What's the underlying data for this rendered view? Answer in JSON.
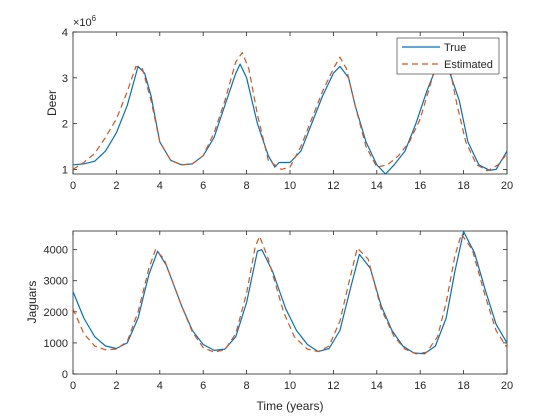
{
  "chart_data": [
    {
      "type": "line",
      "xlabel": "",
      "ylabel": "Deer",
      "xlim": [
        0,
        20
      ],
      "ylim": [
        0.9,
        4
      ],
      "y_exponent_label": "×10",
      "y_exponent_power": "6",
      "xticks": [
        "0",
        "2",
        "4",
        "6",
        "8",
        "10",
        "12",
        "14",
        "16",
        "18",
        "20"
      ],
      "yticks": [
        "1",
        "2",
        "3",
        "4"
      ],
      "legend": {
        "placement": "top-right",
        "entries": [
          "True",
          "Estimated"
        ]
      },
      "series": [
        {
          "name": "True",
          "color": "#0072BD",
          "style": "solid",
          "points": [
            [
              0,
              1.1
            ],
            [
              0.5,
              1.12
            ],
            [
              1,
              1.18
            ],
            [
              1.5,
              1.4
            ],
            [
              2,
              1.8
            ],
            [
              2.5,
              2.4
            ],
            [
              3,
              3.25
            ],
            [
              3.3,
              3.1
            ],
            [
              3.6,
              2.6
            ],
            [
              4,
              1.6
            ],
            [
              4.5,
              1.2
            ],
            [
              5,
              1.1
            ],
            [
              5.5,
              1.12
            ],
            [
              6,
              1.3
            ],
            [
              6.5,
              1.7
            ],
            [
              7,
              2.4
            ],
            [
              7.5,
              3.1
            ],
            [
              7.7,
              3.3
            ],
            [
              8,
              3.0
            ],
            [
              8.5,
              2.0
            ],
            [
              9,
              1.3
            ],
            [
              9.3,
              1.05
            ],
            [
              9.5,
              1.15
            ],
            [
              10,
              1.15
            ],
            [
              10.5,
              1.4
            ],
            [
              11,
              2.0
            ],
            [
              11.5,
              2.6
            ],
            [
              12,
              3.1
            ],
            [
              12.3,
              3.25
            ],
            [
              12.7,
              3.0
            ],
            [
              13,
              2.4
            ],
            [
              13.5,
              1.6
            ],
            [
              14,
              1.1
            ],
            [
              14.4,
              0.9
            ],
            [
              14.8,
              1.1
            ],
            [
              15.3,
              1.4
            ],
            [
              15.8,
              2.0
            ],
            [
              16.3,
              2.7
            ],
            [
              16.8,
              3.3
            ],
            [
              17.3,
              3.2
            ],
            [
              17.8,
              2.5
            ],
            [
              18.2,
              1.6
            ],
            [
              18.7,
              1.1
            ],
            [
              19.2,
              0.98
            ],
            [
              19.5,
              1.0
            ],
            [
              20,
              1.4
            ]
          ]
        },
        {
          "name": "Estimated",
          "color": "#D95319",
          "style": "dashed",
          "points": [
            [
              0,
              1.0
            ],
            [
              0.5,
              1.15
            ],
            [
              1,
              1.35
            ],
            [
              1.5,
              1.7
            ],
            [
              2,
              2.1
            ],
            [
              2.5,
              2.7
            ],
            [
              2.9,
              3.25
            ],
            [
              3.2,
              3.2
            ],
            [
              3.6,
              2.5
            ],
            [
              4,
              1.6
            ],
            [
              4.5,
              1.2
            ],
            [
              5,
              1.1
            ],
            [
              5.5,
              1.12
            ],
            [
              6,
              1.3
            ],
            [
              6.5,
              1.8
            ],
            [
              7,
              2.5
            ],
            [
              7.5,
              3.35
            ],
            [
              7.8,
              3.55
            ],
            [
              8.1,
              3.2
            ],
            [
              8.5,
              2.2
            ],
            [
              9,
              1.2
            ],
            [
              9.6,
              1.0
            ],
            [
              10,
              1.05
            ],
            [
              10.5,
              1.5
            ],
            [
              11,
              2.1
            ],
            [
              11.5,
              2.7
            ],
            [
              12,
              3.2
            ],
            [
              12.3,
              3.45
            ],
            [
              12.6,
              3.2
            ],
            [
              13,
              2.4
            ],
            [
              13.5,
              1.5
            ],
            [
              14,
              1.05
            ],
            [
              14.5,
              1.1
            ],
            [
              15,
              1.3
            ],
            [
              15.5,
              1.6
            ],
            [
              16,
              2.1
            ],
            [
              16.5,
              2.9
            ],
            [
              16.9,
              3.6
            ],
            [
              17.3,
              3.35
            ],
            [
              17.7,
              2.4
            ],
            [
              18.1,
              1.6
            ],
            [
              18.6,
              1.1
            ],
            [
              19.1,
              0.97
            ],
            [
              19.6,
              1.1
            ],
            [
              20,
              1.35
            ]
          ]
        }
      ]
    },
    {
      "type": "line",
      "xlabel": "Time (years)",
      "ylabel": "Jaguars",
      "xlim": [
        0,
        20
      ],
      "ylim": [
        0,
        4600
      ],
      "xticks": [
        "0",
        "2",
        "4",
        "6",
        "8",
        "10",
        "12",
        "14",
        "16",
        "18",
        "20"
      ],
      "yticks": [
        "0",
        "1000",
        "2000",
        "3000",
        "4000"
      ],
      "series": [
        {
          "name": "True",
          "color": "#0072BD",
          "style": "solid",
          "points": [
            [
              0,
              2650
            ],
            [
              0.5,
              1800
            ],
            [
              1,
              1200
            ],
            [
              1.5,
              900
            ],
            [
              2,
              820
            ],
            [
              2.5,
              1000
            ],
            [
              3,
              1800
            ],
            [
              3.5,
              3200
            ],
            [
              3.9,
              3950
            ],
            [
              4.3,
              3500
            ],
            [
              5,
              2200
            ],
            [
              5.5,
              1400
            ],
            [
              6,
              950
            ],
            [
              6.5,
              760
            ],
            [
              7,
              800
            ],
            [
              7.5,
              1200
            ],
            [
              8,
              2300
            ],
            [
              8.5,
              3950
            ],
            [
              8.7,
              4000
            ],
            [
              9.2,
              3300
            ],
            [
              9.8,
              2100
            ],
            [
              10.3,
              1400
            ],
            [
              10.8,
              950
            ],
            [
              11.3,
              720
            ],
            [
              11.8,
              820
            ],
            [
              12.3,
              1400
            ],
            [
              12.8,
              2800
            ],
            [
              13.2,
              3850
            ],
            [
              13.7,
              3400
            ],
            [
              14.2,
              2200
            ],
            [
              14.7,
              1400
            ],
            [
              15.2,
              900
            ],
            [
              15.7,
              680
            ],
            [
              16.2,
              650
            ],
            [
              16.7,
              900
            ],
            [
              17.2,
              1800
            ],
            [
              17.6,
              3300
            ],
            [
              18,
              4580
            ],
            [
              18.5,
              3900
            ],
            [
              19,
              2700
            ],
            [
              19.5,
              1600
            ],
            [
              20,
              1000
            ]
          ]
        },
        {
          "name": "Estimated",
          "color": "#D95319",
          "style": "dashed",
          "points": [
            [
              0,
              2100
            ],
            [
              0.5,
              1300
            ],
            [
              1,
              900
            ],
            [
              1.5,
              780
            ],
            [
              2,
              800
            ],
            [
              2.5,
              1050
            ],
            [
              3,
              2000
            ],
            [
              3.5,
              3400
            ],
            [
              3.8,
              4000
            ],
            [
              4.2,
              3700
            ],
            [
              5,
              2200
            ],
            [
              5.5,
              1350
            ],
            [
              6,
              850
            ],
            [
              6.5,
              700
            ],
            [
              7,
              780
            ],
            [
              7.5,
              1300
            ],
            [
              8,
              2600
            ],
            [
              8.4,
              4100
            ],
            [
              8.6,
              4430
            ],
            [
              9,
              3700
            ],
            [
              9.7,
              2000
            ],
            [
              10.2,
              1200
            ],
            [
              10.8,
              800
            ],
            [
              11.3,
              720
            ],
            [
              11.8,
              900
            ],
            [
              12.3,
              1700
            ],
            [
              12.7,
              2900
            ],
            [
              13.1,
              4050
            ],
            [
              13.6,
              3700
            ],
            [
              14.2,
              2100
            ],
            [
              14.8,
              1200
            ],
            [
              15.3,
              800
            ],
            [
              15.8,
              650
            ],
            [
              16.3,
              700
            ],
            [
              16.8,
              1200
            ],
            [
              17.2,
              2300
            ],
            [
              17.6,
              3800
            ],
            [
              17.9,
              4500
            ],
            [
              18.4,
              4000
            ],
            [
              19,
              2500
            ],
            [
              19.5,
              1400
            ],
            [
              20,
              850
            ]
          ]
        }
      ]
    }
  ]
}
